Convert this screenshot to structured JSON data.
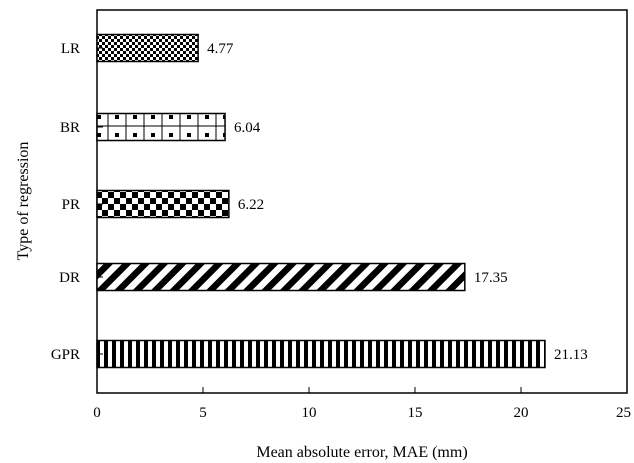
{
  "chart_data": {
    "type": "bar",
    "orientation": "horizontal",
    "categories": [
      "LR",
      "BR",
      "PR",
      "DR",
      "GPR"
    ],
    "values": [
      4.77,
      6.04,
      6.22,
      17.35,
      21.13
    ],
    "value_labels": [
      "4.77",
      "6.04",
      "6.22",
      "17.35",
      "21.13"
    ],
    "patterns": [
      "fine-checker",
      "dotted-squares",
      "checker",
      "diagonal-stripes",
      "vertical-stripes"
    ],
    "xlabel": "Mean absolute error, MAE (mm)",
    "ylabel": "Type of regression",
    "xlim": [
      0,
      25
    ],
    "xticks": [
      "0",
      "5",
      "10",
      "15",
      "20",
      "25"
    ],
    "grid": false,
    "bar_color": "#000000",
    "background": "#ffffff"
  }
}
